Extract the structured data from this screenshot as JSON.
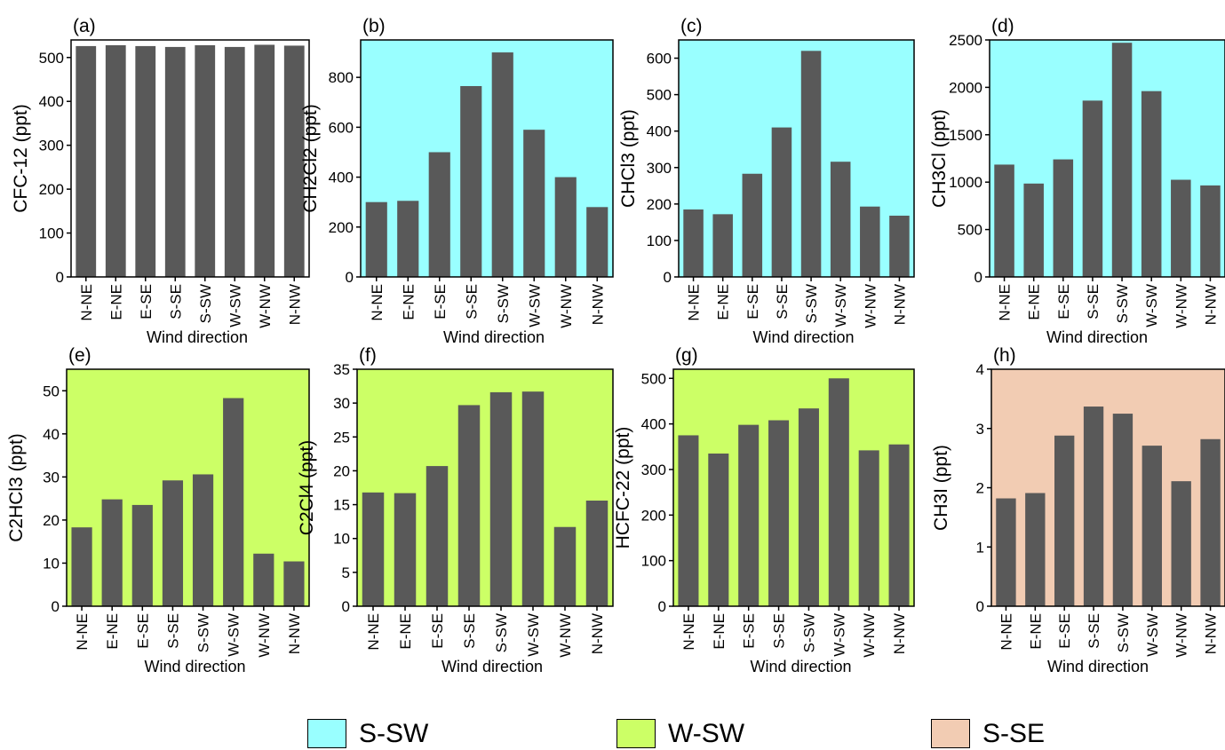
{
  "chart_data": [
    {
      "type": "bar",
      "panel_label": "(a)",
      "ylabel": "CFC-12 (ppt)",
      "xlabel": "Wind direction",
      "categories": [
        "N-NE",
        "E-NE",
        "E-SE",
        "S-SE",
        "S-SW",
        "W-SW",
        "W-NW",
        "N-NW"
      ],
      "values": [
        526,
        528,
        526,
        524,
        528,
        524,
        529,
        527
      ],
      "ylim": [
        0,
        540
      ],
      "yticks": [
        0,
        100,
        200,
        300,
        400,
        500
      ],
      "background": "#ffffff",
      "grid": false
    },
    {
      "type": "bar",
      "panel_label": "(b)",
      "ylabel": "CH2Cl2 (ppt)",
      "xlabel": "Wind direction",
      "categories": [
        "N-NE",
        "E-NE",
        "E-SE",
        "S-SE",
        "S-SW",
        "W-SW",
        "W-NW",
        "N-NW"
      ],
      "values": [
        300,
        305,
        500,
        765,
        900,
        590,
        400,
        280
      ],
      "ylim": [
        0,
        950
      ],
      "yticks": [
        0,
        200,
        400,
        600,
        800
      ],
      "background": "#99ffff",
      "grid": false
    },
    {
      "type": "bar",
      "panel_label": "(c)",
      "ylabel": "CHCl3 (ppt)",
      "xlabel": "Wind direction",
      "categories": [
        "N-NE",
        "E-NE",
        "E-SE",
        "S-SE",
        "S-SW",
        "W-SW",
        "W-NW",
        "N-NW"
      ],
      "values": [
        185,
        172,
        283,
        410,
        620,
        316,
        193,
        168
      ],
      "ylim": [
        0,
        650
      ],
      "yticks": [
        0,
        100,
        200,
        300,
        400,
        500,
        600
      ],
      "background": "#99ffff",
      "grid": false
    },
    {
      "type": "bar",
      "panel_label": "(d)",
      "ylabel": "CH3Cl (ppt)",
      "xlabel": "Wind direction",
      "categories": [
        "N-NE",
        "E-NE",
        "E-SE",
        "S-SE",
        "S-SW",
        "W-SW",
        "W-NW",
        "N-NW"
      ],
      "values": [
        1185,
        985,
        1240,
        1860,
        2470,
        1960,
        1025,
        965
      ],
      "ylim": [
        0,
        2500
      ],
      "yticks": [
        0,
        500,
        1000,
        1500,
        2000,
        2500
      ],
      "background": "#99ffff",
      "grid": false
    },
    {
      "type": "bar",
      "panel_label": "(e)",
      "ylabel": "C2HCl3 (ppt)",
      "xlabel": "Wind direction",
      "categories": [
        "N-NE",
        "E-NE",
        "E-SE",
        "S-SE",
        "S-SW",
        "W-SW",
        "W-NW",
        "N-NW"
      ],
      "values": [
        18.3,
        24.8,
        23.5,
        29.2,
        30.6,
        48.3,
        12.2,
        10.4
      ],
      "ylim": [
        0,
        55
      ],
      "yticks": [
        0,
        10,
        20,
        30,
        40,
        50
      ],
      "background": "#ccff66",
      "grid": false
    },
    {
      "type": "bar",
      "panel_label": "(f)",
      "ylabel": "C2Cl4 (ppt)",
      "xlabel": "Wind direction",
      "categories": [
        "N-NE",
        "E-NE",
        "E-SE",
        "S-SE",
        "S-SW",
        "W-SW",
        "W-NW",
        "N-NW"
      ],
      "values": [
        16.8,
        16.7,
        20.7,
        29.7,
        31.6,
        31.7,
        11.7,
        15.6
      ],
      "ylim": [
        0,
        35
      ],
      "yticks": [
        0,
        5,
        10,
        15,
        20,
        25,
        30,
        35
      ],
      "background": "#ccff66",
      "grid": false
    },
    {
      "type": "bar",
      "panel_label": "(g)",
      "ylabel": "HCFC-22 (ppt)",
      "xlabel": "Wind direction",
      "categories": [
        "N-NE",
        "E-NE",
        "E-SE",
        "S-SE",
        "S-SW",
        "W-SW",
        "W-NW",
        "N-NW"
      ],
      "values": [
        375,
        335,
        398,
        408,
        434,
        500,
        342,
        355
      ],
      "ylim": [
        0,
        520
      ],
      "yticks": [
        0,
        100,
        200,
        300,
        400,
        500
      ],
      "background": "#ccff66",
      "grid": false
    },
    {
      "type": "bar",
      "panel_label": "(h)",
      "ylabel": "CH3I (ppt)",
      "xlabel": "Wind direction",
      "categories": [
        "N-NE",
        "E-NE",
        "E-SE",
        "S-SE",
        "S-SW",
        "W-SW",
        "W-NW",
        "N-NW"
      ],
      "values": [
        1.82,
        1.91,
        2.88,
        3.37,
        3.25,
        2.71,
        2.11,
        2.82
      ],
      "ylim": [
        0,
        4
      ],
      "yticks": [
        0,
        1,
        2,
        3,
        4
      ],
      "background": "#f2ccb3",
      "grid": false
    }
  ],
  "legend": [
    {
      "label": "S-SW",
      "color": "#99ffff"
    },
    {
      "label": "W-SW",
      "color": "#ccff66"
    },
    {
      "label": "S-SE",
      "color": "#f2ccb3"
    }
  ],
  "bar_color": "#595959"
}
